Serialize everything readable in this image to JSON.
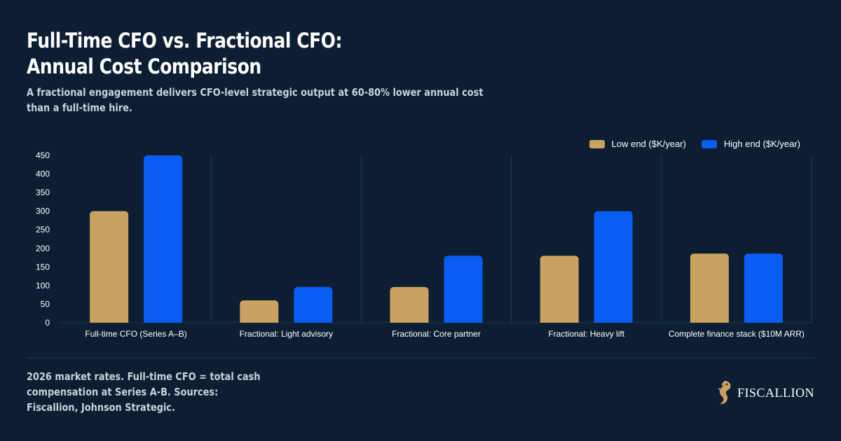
{
  "header": {
    "title": "Full-Time CFO vs. Fractional CFO: Annual Cost Comparison",
    "subtitle": "A fractional engagement delivers CFO-level strategic output at 60-80% lower annual cost than a full-time hire."
  },
  "footer": {
    "note": "2026 market rates. Full-time CFO = total cash compensation at Series A-B. Sources: Fiscallion, Johnson Strategic.",
    "brand": "FISCALLION",
    "brand_icon": "seahorse-logo-icon"
  },
  "colors": {
    "background": "#0d1e33",
    "low": "#c8a261",
    "high": "#0b5cf2",
    "axis_text": "#ffffff",
    "grid": "#25384f"
  },
  "chart_data": {
    "type": "bar",
    "categories": [
      "Full-time CFO (Series A–B)",
      "Fractional: Light advisory",
      "Fractional: Core partner",
      "Fractional: Heavy lift",
      "Complete finance stack ($10M ARR)"
    ],
    "series": [
      {
        "name": "Low end ($K/year)",
        "values": [
          300,
          60,
          96,
          180,
          186
        ]
      },
      {
        "name": "High end ($K/year)",
        "values": [
          450,
          96,
          180,
          300,
          186
        ]
      }
    ],
    "yticks": [
      0,
      50,
      100,
      150,
      200,
      250,
      300,
      350,
      400,
      450
    ],
    "ylim": [
      0,
      450
    ],
    "grid": true,
    "legend_position": "top-right"
  }
}
